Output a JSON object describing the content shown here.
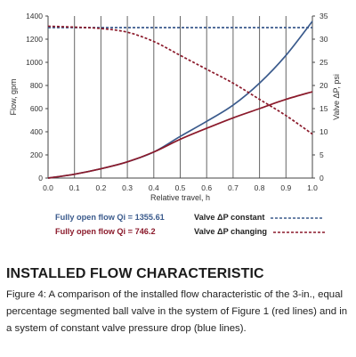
{
  "chart_data": {
    "type": "line",
    "xlabel": "Relative travel, h",
    "ylabel": "Flow, gpm",
    "y2label": "Valve ΔP, psi",
    "xlim": [
      0,
      1.0
    ],
    "ylim": [
      0,
      1400
    ],
    "y2lim": [
      0,
      35
    ],
    "x_ticks": [
      "0.0",
      "0.1",
      "0.2",
      "0.3",
      "0.4",
      "0.5",
      "0.6",
      "0.7",
      "0.8",
      "0.9",
      "1.0"
    ],
    "y_ticks": [
      "0",
      "200",
      "400",
      "600",
      "800",
      "1000",
      "1200",
      "1400"
    ],
    "y2_ticks": [
      "0",
      "5",
      "10",
      "15",
      "20",
      "25",
      "30",
      "35"
    ],
    "grid": "vertical",
    "series": [
      {
        "name": "Fully open flow Qi = 1355.61",
        "axis": "left",
        "color": "#3a5a8c",
        "style": "solid",
        "x": [
          0,
          0.1,
          0.2,
          0.3,
          0.4,
          0.5,
          0.6,
          0.7,
          0.8,
          0.9,
          1.0
        ],
        "y": [
          0,
          33,
          80,
          140,
          225,
          360,
          490,
          630,
          820,
          1060,
          1355
        ]
      },
      {
        "name": "Fully open flow Qi = 746.2",
        "axis": "left",
        "color": "#8b1a2b",
        "style": "solid",
        "x": [
          0,
          0.1,
          0.2,
          0.3,
          0.4,
          0.5,
          0.6,
          0.7,
          0.8,
          0.9,
          1.0
        ],
        "y": [
          0,
          33,
          80,
          140,
          225,
          335,
          430,
          520,
          600,
          680,
          746
        ]
      },
      {
        "name": "Valve ΔP constant",
        "axis": "right",
        "color": "#3a5a8c",
        "style": "dashed",
        "x": [
          0,
          0.1,
          0.2,
          0.3,
          0.4,
          0.5,
          0.6,
          0.7,
          0.8,
          0.9,
          1.0
        ],
        "y": [
          32.5,
          32.5,
          32.5,
          32.5,
          32.5,
          32.5,
          32.5,
          32.5,
          32.5,
          32.5,
          32.5
        ]
      },
      {
        "name": "Valve ΔP changing",
        "axis": "right",
        "color": "#8b1a2b",
        "style": "dashed",
        "x": [
          0,
          0.1,
          0.2,
          0.3,
          0.4,
          0.5,
          0.6,
          0.7,
          0.8,
          0.9,
          1.0
        ],
        "y": [
          32.8,
          32.6,
          32.3,
          31.5,
          29.5,
          26.5,
          23.5,
          20.5,
          17.0,
          13.5,
          9.5
        ]
      }
    ]
  },
  "legend": {
    "flow_blue": "Fully open flow Qi = 1355.61",
    "flow_red": "Fully open flow Qi = 746.2",
    "dp_blue": "Valve ΔP constant",
    "dp_red": "Valve ΔP changing"
  },
  "heading": "INSTALLED FLOW CHARACTERISTIC",
  "caption": "Figure 4: A comparison of the installed flow characteristic of the 3-in., equal percentage segmented ball valve in the system of Figure 1 (red lines) and in a system of constant valve pressure drop (blue lines)."
}
